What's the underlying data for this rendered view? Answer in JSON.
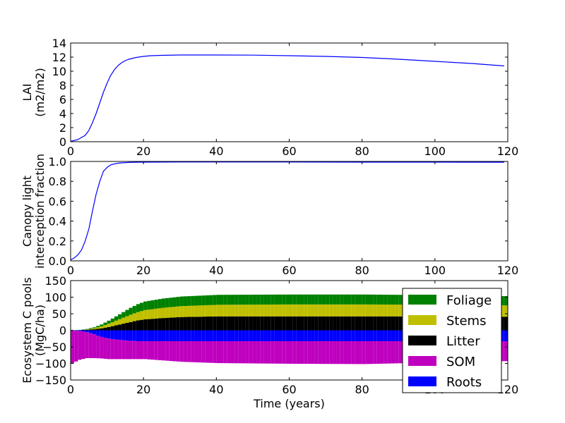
{
  "chart_data": [
    {
      "type": "line",
      "title": "",
      "xlabel": "",
      "ylabel": [
        "LAI",
        "(m2/m2)"
      ],
      "xlim": [
        0,
        120
      ],
      "ylim": [
        0,
        14
      ],
      "xticks": [
        "0",
        "20",
        "40",
        "60",
        "80",
        "100",
        "120"
      ],
      "yticks": [
        "0",
        "2",
        "4",
        "6",
        "8",
        "10",
        "12",
        "14"
      ],
      "grid": false,
      "series": [
        {
          "color": "#0000ff",
          "x": [
            0,
            2,
            4,
            5,
            6,
            7,
            8,
            9,
            10,
            11,
            12,
            13,
            14,
            15,
            16,
            18,
            20,
            22,
            25,
            30,
            35,
            40,
            50,
            60,
            70,
            80,
            90,
            100,
            110,
            119
          ],
          "y": [
            0.05,
            0.3,
            0.9,
            1.6,
            2.7,
            4.0,
            5.5,
            7.0,
            8.3,
            9.4,
            10.2,
            10.8,
            11.2,
            11.5,
            11.7,
            11.95,
            12.1,
            12.2,
            12.25,
            12.3,
            12.3,
            12.3,
            12.28,
            12.2,
            12.1,
            11.95,
            11.7,
            11.4,
            11.1,
            10.75
          ]
        }
      ]
    },
    {
      "type": "line",
      "title": "",
      "xlabel": "",
      "ylabel": [
        "Canopy light",
        "interception fraction"
      ],
      "xlim": [
        0,
        120
      ],
      "ylim": [
        0.0,
        1.0
      ],
      "xticks": [
        "0",
        "20",
        "40",
        "60",
        "80",
        "100",
        "120"
      ],
      "yticks": [
        "0.0",
        "0.2",
        "0.4",
        "0.6",
        "0.8",
        "1.0"
      ],
      "grid": false,
      "series": [
        {
          "color": "#0000ff",
          "x": [
            0,
            1,
            2,
            3,
            4,
            5,
            6,
            7,
            8,
            9,
            10,
            11,
            12,
            13,
            14,
            16,
            18,
            20,
            30,
            40,
            60,
            80,
            100,
            119
          ],
          "y": [
            0.01,
            0.03,
            0.06,
            0.11,
            0.2,
            0.32,
            0.5,
            0.67,
            0.8,
            0.9,
            0.94,
            0.965,
            0.975,
            0.982,
            0.986,
            0.99,
            0.992,
            0.993,
            0.994,
            0.994,
            0.994,
            0.993,
            0.993,
            0.992
          ]
        }
      ]
    },
    {
      "type": "bar",
      "stacked": true,
      "title": "",
      "xlabel": "Time (years)",
      "ylabel": [
        "Ecosystem C pools",
        "(MgC/ha)"
      ],
      "xlim": [
        0,
        120
      ],
      "ylim": [
        -150,
        150
      ],
      "xticks": [
        "0",
        "20",
        "40",
        "60",
        "80",
        "100",
        "120"
      ],
      "yticks": [
        "−150",
        "−100",
        "−50",
        "0",
        "50",
        "100",
        "150"
      ],
      "grid": false,
      "legend": {
        "position": "right",
        "entries": [
          {
            "label": "Foliage",
            "color": "#008000"
          },
          {
            "label": "Stems",
            "color": "#bfbf00"
          },
          {
            "label": "Litter",
            "color": "#000000"
          },
          {
            "label": "SOM",
            "color": "#bf00bf"
          },
          {
            "label": "Roots",
            "color": "#0000ff"
          }
        ]
      },
      "x_years": [
        0,
        119
      ],
      "pools_profile": {
        "t": [
          0,
          2,
          4,
          6,
          8,
          10,
          12,
          14,
          16,
          18,
          20,
          25,
          30,
          40,
          60,
          80,
          100,
          119
        ],
        "Litter": [
          0,
          0.5,
          1.5,
          3,
          6,
          10,
          15,
          20,
          25,
          30,
          33,
          37,
          40,
          42,
          42,
          42,
          42,
          41
        ],
        "Stems": [
          0,
          0.3,
          1,
          3,
          6,
          10,
          14,
          18,
          22,
          25,
          28,
          31,
          33,
          35,
          36,
          36,
          35,
          34
        ],
        "Foliage": [
          0,
          0.5,
          1.5,
          3,
          5.5,
          9,
          13,
          17,
          21,
          24,
          26,
          28,
          29,
          30,
          30,
          30,
          29,
          28
        ],
        "Roots": [
          -0.5,
          -2,
          -6,
          -12,
          -20,
          -25,
          -28,
          -30,
          -32,
          -33,
          -33,
          -33,
          -33,
          -33,
          -33,
          -33,
          -33,
          -33
        ],
        "SOM": [
          -99,
          -87,
          -78,
          -72,
          -65,
          -62,
          -59,
          -57,
          -55,
          -54,
          -54,
          -58,
          -62,
          -66,
          -68,
          -69,
          -64,
          -60
        ]
      }
    }
  ]
}
